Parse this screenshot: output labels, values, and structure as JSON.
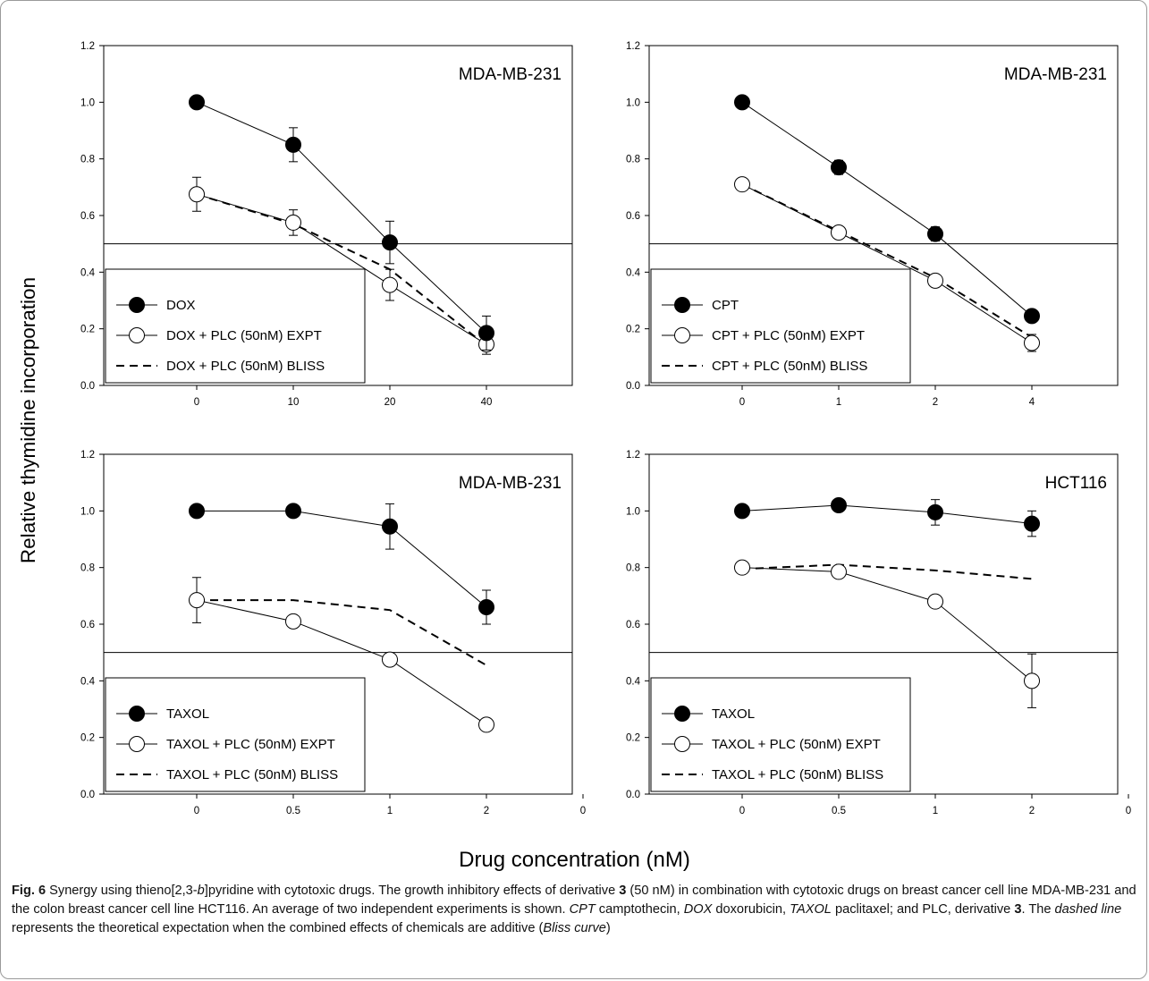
{
  "shared": {
    "ylabel": "Relative thymidine incorporation",
    "xlabel": "Drug concentration (nM)",
    "ylim": [
      0,
      1.2
    ],
    "yticks": [
      "0.0",
      "0.2",
      "0.4",
      "0.6",
      "0.8",
      "1.0",
      "1.2"
    ],
    "reference_line_y": 0.5
  },
  "chart_data": [
    {
      "type": "line",
      "cell_line": "MDA-MB-231",
      "categories": [
        "0",
        "10",
        "20",
        "40"
      ],
      "extra_tick": "",
      "legend_position": "bottom-left",
      "series": [
        {
          "name": "DOX",
          "marker": "filled-circle",
          "values": [
            1.0,
            0.85,
            0.505,
            0.185
          ],
          "errors": [
            0,
            0.06,
            0.075,
            0.06
          ]
        },
        {
          "name": "DOX + PLC (50nM) EXPT",
          "marker": "open-circle",
          "values": [
            0.675,
            0.575,
            0.355,
            0.145
          ],
          "errors": [
            0.06,
            0.045,
            0.055,
            0.035
          ]
        },
        {
          "name": "DOX + PLC (50nM) BLISS",
          "marker": "dashed",
          "values": [
            0.675,
            0.57,
            0.41,
            0.14
          ]
        }
      ]
    },
    {
      "type": "line",
      "cell_line": "MDA-MB-231",
      "categories": [
        "0",
        "1",
        "2",
        "4"
      ],
      "extra_tick": "",
      "legend_position": "bottom-left",
      "series": [
        {
          "name": "CPT",
          "marker": "filled-circle",
          "values": [
            1.0,
            0.77,
            0.535,
            0.245
          ],
          "errors": [
            0,
            0.025,
            0.025,
            0.02
          ]
        },
        {
          "name": "CPT + PLC (50nM) EXPT",
          "marker": "open-circle",
          "values": [
            0.71,
            0.54,
            0.37,
            0.15
          ],
          "errors": [
            0,
            0,
            0,
            0.03
          ]
        },
        {
          "name": "CPT + PLC (50nM) BLISS",
          "marker": "dashed",
          "values": [
            0.71,
            0.545,
            0.38,
            0.17
          ]
        }
      ]
    },
    {
      "type": "line",
      "cell_line": "MDA-MB-231",
      "categories": [
        "0",
        "0.5",
        "1",
        "2"
      ],
      "extra_tick": "0",
      "legend_position": "bottom-left",
      "series": [
        {
          "name": "TAXOL",
          "marker": "filled-circle",
          "values": [
            1.0,
            1.0,
            0.945,
            0.66
          ],
          "errors": [
            0,
            0,
            0.08,
            0.06
          ]
        },
        {
          "name": "TAXOL + PLC (50nM) EXPT",
          "marker": "open-circle",
          "values": [
            0.685,
            0.61,
            0.475,
            0.245
          ],
          "errors": [
            0.08,
            0.02,
            0,
            0
          ]
        },
        {
          "name": "TAXOL + PLC (50nM) BLISS",
          "marker": "dashed",
          "values": [
            0.685,
            0.685,
            0.65,
            0.455
          ]
        }
      ]
    },
    {
      "type": "line",
      "cell_line": "HCT116",
      "categories": [
        "0",
        "0.5",
        "1",
        "2"
      ],
      "extra_tick": "0",
      "legend_position": "bottom-left",
      "series": [
        {
          "name": "TAXOL",
          "marker": "filled-circle",
          "values": [
            1.0,
            1.02,
            0.995,
            0.955
          ],
          "errors": [
            0,
            0,
            0.045,
            0.045
          ]
        },
        {
          "name": "TAXOL + PLC (50nM) EXPT",
          "marker": "open-circle",
          "values": [
            0.8,
            0.785,
            0.68,
            0.4
          ],
          "errors": [
            0,
            0,
            0.02,
            0.095
          ]
        },
        {
          "name": "TAXOL + PLC (50nM) BLISS",
          "marker": "dashed",
          "values": [
            0.795,
            0.81,
            0.79,
            0.76
          ]
        }
      ]
    }
  ],
  "caption": {
    "fig_label": "Fig. 6",
    "segments": [
      {
        "t": "  Synergy using thieno[2,3-",
        "s": "n"
      },
      {
        "t": "b",
        "s": "i"
      },
      {
        "t": "]pyridine with cytotoxic drugs. The growth inhibitory effects of derivative ",
        "s": "n"
      },
      {
        "t": "3",
        "s": "b"
      },
      {
        "t": " (50 nM) in combination with cytotoxic drugs on breast cancer cell line MDA-MB-231 and the colon breast cancer cell line HCT116. An average of two independent experiments is shown. ",
        "s": "n"
      },
      {
        "t": "CPT",
        "s": "i"
      },
      {
        "t": " camptothecin, ",
        "s": "n"
      },
      {
        "t": "DOX",
        "s": "i"
      },
      {
        "t": " doxorubicin, ",
        "s": "n"
      },
      {
        "t": "TAXOL",
        "s": "i"
      },
      {
        "t": " paclitaxel; and PLC, derivative ",
        "s": "n"
      },
      {
        "t": "3",
        "s": "b"
      },
      {
        "t": ". The ",
        "s": "n"
      },
      {
        "t": "dashed line",
        "s": "i"
      },
      {
        "t": " represents the theoretical expectation when the combined effects of chemicals are additive (",
        "s": "n"
      },
      {
        "t": "Bliss curve",
        "s": "i"
      },
      {
        "t": ")",
        "s": "n"
      }
    ]
  }
}
